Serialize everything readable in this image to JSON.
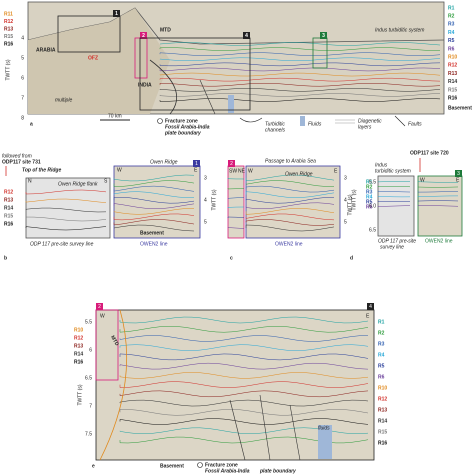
{
  "panel_a": {
    "letter": "a",
    "left_labels": [
      "R11",
      "R12",
      "R13",
      "R15",
      "R16"
    ],
    "right_labels": [
      "R1",
      "R2",
      "R3",
      "R4",
      "R5",
      "R6",
      "R10",
      "R12",
      "R13",
      "R14",
      "R15",
      "R16"
    ],
    "basement": "Basement",
    "axis_title": "TWTT (s)",
    "ticks": [
      "4",
      "5",
      "6",
      "7",
      "8"
    ],
    "arabia": "ARABIA",
    "india": "INDIA",
    "ofz": "OFZ",
    "mtd": "MTD",
    "multiple": "multiple",
    "indus": "Indus turbiditic system",
    "boxes": [
      "1",
      "2",
      "3",
      "4"
    ]
  },
  "legend": {
    "scale": "70 km",
    "fracture_zone": "Fracture zone",
    "boundary": "Fossil Arabia-India",
    "boundary2": "plate boundary",
    "channels": "Turbiditic",
    "channels2": "channels",
    "fluids": "Fluids",
    "diagenetic": "Diagenetic",
    "diagenetic2": "layers",
    "faults": "Faults"
  },
  "panel_b": {
    "letter": "b",
    "followed": "followed from",
    "site": "ODP117 site 731",
    "top": "Top of the Ridge",
    "flank": "Owen Ridge flank",
    "left_labels": [
      "R12",
      "R13",
      "R14",
      "R15",
      "R16"
    ],
    "survey": "ODP 117 pre-site survey line",
    "ridge": "Owen Ridge",
    "west": "W",
    "east": "E",
    "box": "1",
    "axis_title": "TWTT (s)",
    "ticks": [
      "3",
      "4",
      "5"
    ],
    "basement": "Basement",
    "line": "OWEN2 line",
    "north": "N",
    "south": "S"
  },
  "panel_c": {
    "letter": "c",
    "passage": "Passage to Arabia Sea",
    "box": "2",
    "sw": "SW",
    "ne": "NE",
    "west": "W",
    "east": "E",
    "ridge": "Owen Ridge",
    "axis_title": "TWTT (s)",
    "ticks": [
      "3",
      "4",
      "5"
    ],
    "line": "OWEN2 line"
  },
  "panel_d": {
    "letter": "d",
    "site": "ODP117 site 720",
    "indus": "Indus",
    "indus2": "turbiditic system",
    "labels": [
      "R1",
      "R2",
      "R3",
      "R4",
      "R5",
      "R6"
    ],
    "ticks": [
      "5.5",
      "6.0",
      "6.5"
    ],
    "axis_title": "TWTT (s)",
    "survey": "ODP 117 pre-site",
    "survey2": "survey line",
    "line": "OWEN2 line",
    "box": "3",
    "west": "W",
    "east": "E"
  },
  "panel_e": {
    "letter": "e",
    "box_left": "2",
    "box_right": "4",
    "mtd": "MTD",
    "west": "W",
    "east": "E",
    "ticks": [
      "5.5",
      "6",
      "6.5",
      "7",
      "7.5"
    ],
    "axis_title": "TWTT (s)",
    "left_labels": [
      "R10",
      "R12",
      "R13",
      "R14",
      "R16"
    ],
    "right_labels": [
      "R1",
      "R2",
      "R3",
      "R4",
      "R5",
      "R6",
      "R10",
      "R12",
      "R13",
      "R14",
      "R15",
      "R16"
    ],
    "basement": "Basement",
    "fracture_zone": "Fracture zone",
    "boundary": "Fossil Arabia-India",
    "boundary2": "plate boundary",
    "fluids": "fluids"
  }
}
